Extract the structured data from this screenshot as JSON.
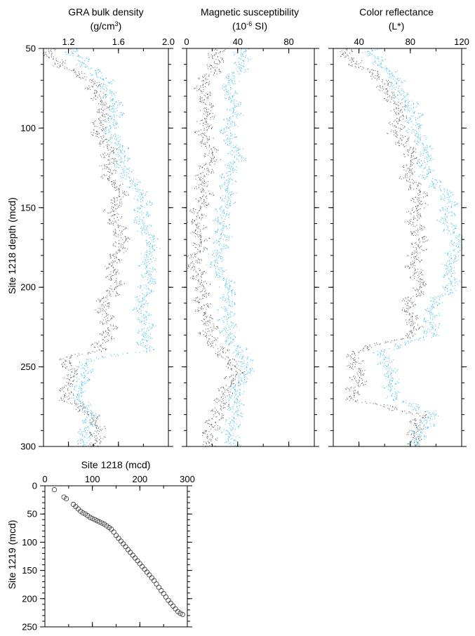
{
  "colors": {
    "record_a": "#555555",
    "record_b": "#33bbee",
    "axes": "#000000"
  },
  "chart_data": [
    {
      "type": "line",
      "title": "GRA bulk density",
      "unit_parts": [
        "(g/cm",
        "3",
        ")"
      ],
      "ylabel": "Site 1218 depth (mcd)",
      "xlim": [
        1.0,
        2.0
      ],
      "x_ticks": [
        1.2,
        1.6,
        2.0
      ],
      "ylim": [
        300,
        50
      ],
      "y_ticks": [
        50,
        100,
        150,
        200,
        250,
        300
      ],
      "series": [
        {
          "color": "#555555",
          "depth": [
            52,
            60,
            70,
            80,
            90,
            100,
            110,
            120,
            130,
            140,
            150,
            160,
            170,
            180,
            190,
            200,
            210,
            220,
            230,
            240,
            245,
            250,
            260,
            270,
            280,
            290,
            300
          ],
          "x": [
            1.05,
            1.1,
            1.4,
            1.45,
            1.45,
            1.45,
            1.5,
            1.5,
            1.55,
            1.6,
            1.55,
            1.6,
            1.6,
            1.6,
            1.55,
            1.55,
            1.5,
            1.5,
            1.5,
            1.45,
            1.15,
            1.2,
            1.2,
            1.2,
            1.35,
            1.45,
            1.45
          ]
        },
        {
          "color": "#33bbee",
          "depth": [
            52,
            60,
            70,
            80,
            90,
            100,
            110,
            120,
            130,
            140,
            150,
            160,
            170,
            180,
            190,
            200,
            210,
            220,
            230,
            240,
            245,
            250,
            260,
            270,
            280,
            290,
            300
          ],
          "x": [
            1.25,
            1.3,
            1.5,
            1.55,
            1.55,
            1.55,
            1.6,
            1.6,
            1.7,
            1.75,
            1.8,
            1.8,
            1.85,
            1.85,
            1.85,
            1.8,
            1.8,
            1.8,
            1.8,
            1.85,
            1.35,
            1.3,
            1.3,
            1.3,
            1.35,
            1.35,
            1.35
          ]
        }
      ]
    },
    {
      "type": "line",
      "title": "Magnetic susceptibility",
      "unit_parts": [
        "(10",
        "-6",
        " SI)"
      ],
      "xlim": [
        0,
        100
      ],
      "x_ticks": [
        0,
        40,
        80
      ],
      "ylim": [
        300,
        50
      ],
      "y_ticks": [
        50,
        100,
        150,
        200,
        250,
        300
      ],
      "series": [
        {
          "color": "#555555",
          "depth": [
            50,
            60,
            70,
            80,
            90,
            100,
            110,
            120,
            130,
            140,
            150,
            160,
            170,
            180,
            190,
            200,
            210,
            220,
            230,
            240,
            250,
            260,
            270,
            280,
            290,
            300
          ],
          "x": [
            25,
            20,
            15,
            15,
            15,
            15,
            15,
            18,
            15,
            12,
            10,
            10,
            8,
            8,
            8,
            10,
            15,
            15,
            15,
            30,
            35,
            35,
            30,
            20,
            20,
            20
          ]
        },
        {
          "color": "#33bbee",
          "depth": [
            50,
            60,
            70,
            80,
            90,
            100,
            110,
            120,
            130,
            140,
            150,
            160,
            170,
            180,
            190,
            200,
            210,
            220,
            230,
            240,
            250,
            260,
            270,
            280,
            290,
            300
          ],
          "x": [
            45,
            40,
            35,
            35,
            35,
            35,
            35,
            38,
            35,
            30,
            30,
            30,
            25,
            25,
            25,
            30,
            35,
            30,
            30,
            45,
            45,
            40,
            40,
            35,
            35,
            40
          ]
        }
      ]
    },
    {
      "type": "line",
      "title": "Color reflectance",
      "unit_parts": [
        "(L*)"
      ],
      "xlim": [
        20,
        120
      ],
      "x_ticks": [
        40,
        80,
        120
      ],
      "ylim": [
        300,
        50
      ],
      "y_ticks": [
        50,
        100,
        150,
        200,
        250,
        300
      ],
      "series": [
        {
          "color": "#555555",
          "depth": [
            52,
            60,
            70,
            80,
            90,
            100,
            110,
            120,
            130,
            140,
            150,
            160,
            170,
            180,
            190,
            200,
            210,
            220,
            230,
            240,
            250,
            260,
            270,
            280,
            290,
            300
          ],
          "x": [
            30,
            35,
            60,
            65,
            70,
            70,
            75,
            80,
            80,
            85,
            85,
            85,
            85,
            85,
            85,
            85,
            80,
            80,
            80,
            40,
            35,
            40,
            35,
            85,
            85,
            85
          ]
        },
        {
          "color": "#33bbee",
          "depth": [
            52,
            60,
            70,
            80,
            90,
            100,
            110,
            120,
            130,
            140,
            150,
            160,
            170,
            180,
            190,
            200,
            210,
            220,
            230,
            240,
            250,
            260,
            270,
            280,
            290,
            300
          ],
          "x": [
            50,
            55,
            70,
            75,
            80,
            85,
            90,
            90,
            95,
            105,
            110,
            110,
            115,
            115,
            110,
            110,
            100,
            95,
            95,
            60,
            60,
            65,
            70,
            95,
            90,
            85
          ]
        }
      ]
    },
    {
      "type": "scatter",
      "title": "Site 1218 (mcd)",
      "ylabel": "Site 1219 (mcd)",
      "xlim": [
        0,
        300
      ],
      "x_ticks": [
        0,
        100,
        200,
        300
      ],
      "ylim": [
        250,
        0
      ],
      "y_ticks": [
        0,
        50,
        100,
        150,
        200,
        250
      ],
      "points": [
        [
          20,
          7
        ],
        [
          40,
          20
        ],
        [
          45,
          23
        ],
        [
          60,
          33
        ],
        [
          65,
          37
        ],
        [
          70,
          41
        ],
        [
          75,
          45
        ],
        [
          80,
          48
        ],
        [
          85,
          50
        ],
        [
          90,
          53
        ],
        [
          95,
          56
        ],
        [
          100,
          58
        ],
        [
          105,
          60
        ],
        [
          110,
          62
        ],
        [
          115,
          64
        ],
        [
          120,
          66
        ],
        [
          125,
          68
        ],
        [
          130,
          71
        ],
        [
          135,
          74
        ],
        [
          140,
          77
        ],
        [
          145,
          82
        ],
        [
          150,
          88
        ],
        [
          155,
          93
        ],
        [
          160,
          98
        ],
        [
          165,
          103
        ],
        [
          170,
          108
        ],
        [
          175,
          113
        ],
        [
          180,
          118
        ],
        [
          185,
          123
        ],
        [
          190,
          128
        ],
        [
          195,
          133
        ],
        [
          200,
          138
        ],
        [
          205,
          143
        ],
        [
          210,
          148
        ],
        [
          215,
          153
        ],
        [
          220,
          158
        ],
        [
          225,
          163
        ],
        [
          230,
          168
        ],
        [
          235,
          174
        ],
        [
          240,
          180
        ],
        [
          245,
          186
        ],
        [
          250,
          191
        ],
        [
          255,
          197
        ],
        [
          260,
          203
        ],
        [
          265,
          208
        ],
        [
          270,
          213
        ],
        [
          275,
          218
        ],
        [
          280,
          223
        ],
        [
          285,
          226
        ],
        [
          290,
          228
        ]
      ]
    }
  ]
}
